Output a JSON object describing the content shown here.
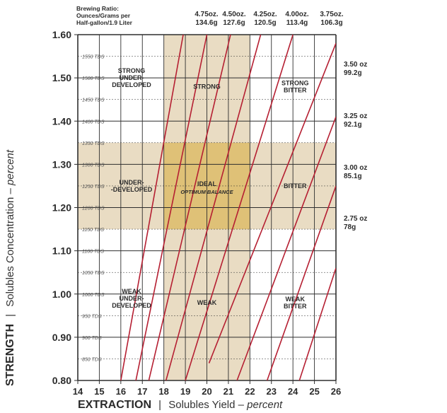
{
  "brewing_ratio": {
    "label_lines": [
      "Brewing Ratio:",
      "Ounces/Grams per",
      "Half-gallon/1.9 Liter"
    ],
    "top": [
      {
        "oz": "4.75oz.",
        "g": "134.6g"
      },
      {
        "oz": "4.50oz.",
        "g": "127.6g"
      },
      {
        "oz": "4.25oz.",
        "g": "120.5g"
      },
      {
        "oz": "4.00oz.",
        "g": "113.4g"
      },
      {
        "oz": "3.75oz.",
        "g": "106.3g"
      }
    ],
    "right": [
      {
        "oz": "3.50 oz",
        "g": "99.2g"
      },
      {
        "oz": "3.25 oz",
        "g": "92.1g"
      },
      {
        "oz": "3.00 oz",
        "g": "85.1g"
      },
      {
        "oz": "2.75 oz",
        "g": "78g"
      }
    ]
  },
  "axis_titles": {
    "y_bold": "STRENGTH",
    "y_sep": "|",
    "y_rest": "Solubles Concentration –",
    "y_italic": "percent",
    "x_bold": "EXTRACTION",
    "x_sep": "|",
    "x_rest": "Solubles Yield –",
    "x_italic": "percent"
  },
  "colors": {
    "band": "#e9dcc3",
    "ideal": "#dfc177",
    "grid": "#2e2e2e",
    "ratio_line": "#b51f32",
    "tds_text": "#555555"
  },
  "chart_data": {
    "type": "line",
    "xlim": [
      14,
      26
    ],
    "ylim": [
      0.8,
      1.6
    ],
    "x_ticks": [
      "14",
      "15",
      "16",
      "17",
      "18",
      "19",
      "20",
      "21",
      "22",
      "23",
      "24",
      "25",
      "26"
    ],
    "y_ticks": [
      "0.80",
      "0.90",
      "1.00",
      "1.10",
      "1.20",
      "1.30",
      "1.40",
      "1.50",
      "1.60"
    ],
    "tds_ticks": [
      {
        "y": 0.85,
        "label": "850 TDS"
      },
      {
        "y": 0.9,
        "label": "900 TDS"
      },
      {
        "y": 0.95,
        "label": "950 TDS"
      },
      {
        "y": 1.0,
        "label": "1000 TDS"
      },
      {
        "y": 1.05,
        "label": "1050 TDS"
      },
      {
        "y": 1.1,
        "label": "1100 TDS"
      },
      {
        "y": 1.15,
        "label": "1150 TDS"
      },
      {
        "y": 1.2,
        "label": "1200 TDS"
      },
      {
        "y": 1.25,
        "label": "1250 TDS"
      },
      {
        "y": 1.3,
        "label": "1300 TDS"
      },
      {
        "y": 1.35,
        "label": "1350 TDS"
      },
      {
        "y": 1.4,
        "label": "1400 TDS"
      },
      {
        "y": 1.45,
        "label": "1450 TDS"
      },
      {
        "y": 1.5,
        "label": "1500 TDS"
      },
      {
        "y": 1.55,
        "label": "1550 TDS"
      }
    ],
    "series": [
      {
        "x": [
          16.0,
          18.9
        ],
        "y": [
          0.8,
          1.6
        ]
      },
      {
        "x": [
          16.7,
          20.0
        ],
        "y": [
          0.8,
          1.6
        ]
      },
      {
        "x": [
          17.3,
          21.1
        ],
        "y": [
          0.8,
          1.6
        ]
      },
      {
        "x": [
          18.1,
          22.5
        ],
        "y": [
          0.8,
          1.6
        ]
      },
      {
        "x": [
          19.0,
          24.0
        ],
        "y": [
          0.8,
          1.6
        ]
      },
      {
        "x": [
          20.1,
          26.0
        ],
        "y": [
          0.84,
          1.58
        ]
      },
      {
        "x": [
          21.4,
          26.0
        ],
        "y": [
          0.8,
          1.41
        ]
      },
      {
        "x": [
          22.8,
          26.0
        ],
        "y": [
          0.8,
          1.25
        ]
      },
      {
        "x": [
          24.3,
          26.0
        ],
        "y": [
          0.8,
          1.06
        ]
      }
    ],
    "regions": {
      "vertical_band": {
        "x": [
          18,
          22
        ]
      },
      "horizontal_band": {
        "y": [
          1.15,
          1.35
        ]
      }
    },
    "annotations": [
      {
        "lines": [
          "STRONG",
          "UNDER-",
          "DEVELOPED"
        ],
        "x": 16.5,
        "y": 1.5
      },
      {
        "lines": [
          "STRONG"
        ],
        "x": 20.0,
        "y": 1.48
      },
      {
        "lines": [
          "STRONG",
          "BITTER"
        ],
        "x": 24.1,
        "y": 1.48
      },
      {
        "lines": [
          "UNDER-",
          "-DEVELOPED"
        ],
        "x": 16.5,
        "y": 1.25
      },
      {
        "lines": [
          "IDEAL"
        ],
        "x": 20.0,
        "y": 1.255
      },
      {
        "lines": [
          "OPTIMUM BALANCE"
        ],
        "x": 20.0,
        "y": 1.237,
        "italic": true
      },
      {
        "lines": [
          "BITTER"
        ],
        "x": 24.1,
        "y": 1.25
      },
      {
        "lines": [
          "WEAK",
          "UNDER-",
          "DEVELOPED"
        ],
        "x": 16.5,
        "y": 0.99
      },
      {
        "lines": [
          "WEAK"
        ],
        "x": 20.0,
        "y": 0.98
      },
      {
        "lines": [
          "WEAK",
          "BITTER"
        ],
        "x": 24.1,
        "y": 0.98
      }
    ]
  }
}
